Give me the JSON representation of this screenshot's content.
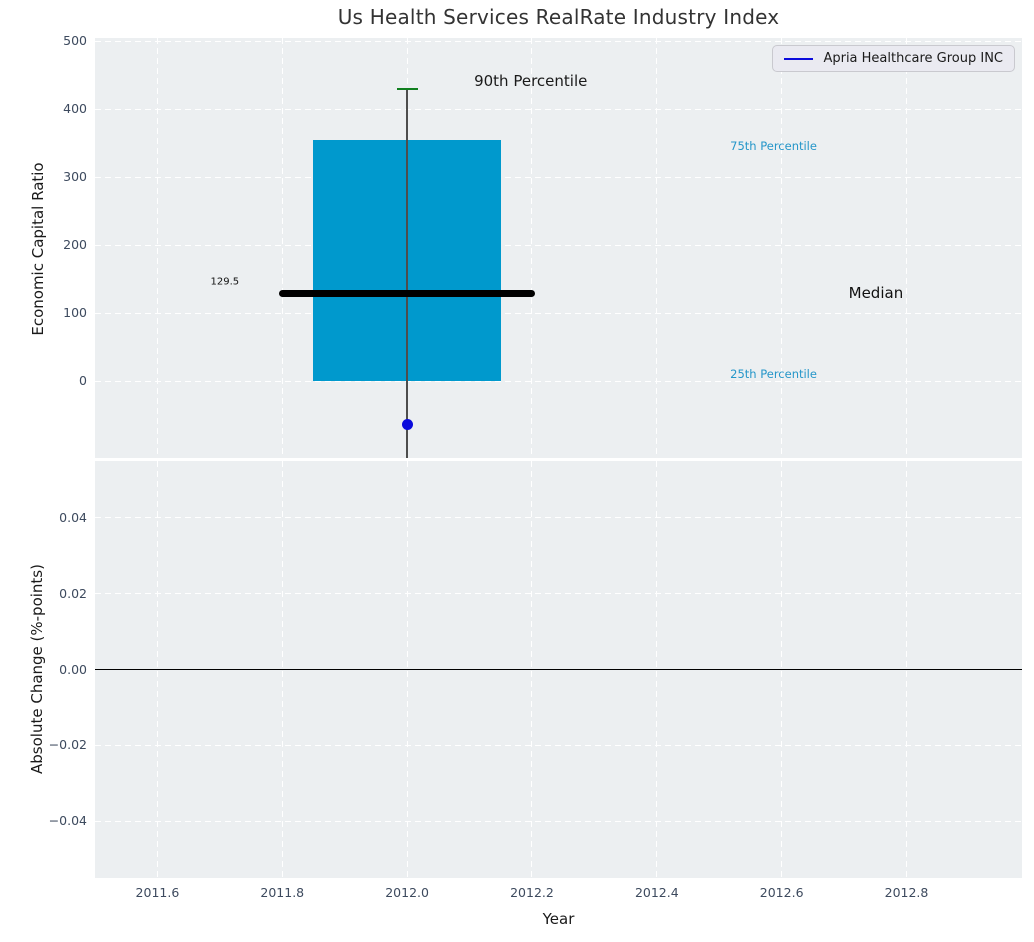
{
  "title": "Us Health Services RealRate Industry Index",
  "legend": {
    "label": "Apria Healthcare Group INC",
    "line_color": "#0b0bdc"
  },
  "colors": {
    "axes_background": "#eceff1",
    "grid": "#ffffff",
    "tick_label": "#3d4a5e",
    "box_fill": "#0099cd",
    "cap_green": "#107f1f",
    "median_black": "#000000",
    "company_blue": "#0b0bdc",
    "whisker_gray": "#4d4d4d"
  },
  "chart_data": {
    "type": "boxplot",
    "title": "Us Health Services RealRate Industry Index",
    "xlabel": "Year",
    "xlim": [
      2011.5,
      2012.985
    ],
    "xticks": [
      {
        "v": 2011.6,
        "label": "2011.6"
      },
      {
        "v": 2011.8,
        "label": "2011.8"
      },
      {
        "v": 2012.0,
        "label": "2012.0"
      },
      {
        "v": 2012.2,
        "label": "2012.2"
      },
      {
        "v": 2012.4,
        "label": "2012.4"
      },
      {
        "v": 2012.6,
        "label": "2012.6"
      },
      {
        "v": 2012.8,
        "label": "2012.8"
      }
    ],
    "grid": true,
    "legend_position": "upper right",
    "subplots": [
      {
        "name": "economic-capital-ratio",
        "ylabel": "Economic Capital Ratio",
        "ylim": [
          -113,
          505
        ],
        "yticks": [
          {
            "v": 0,
            "label": "0"
          },
          {
            "v": 100,
            "label": "100"
          },
          {
            "v": 200,
            "label": "200"
          },
          {
            "v": 300,
            "label": "300"
          },
          {
            "v": 400,
            "label": "400"
          },
          {
            "v": 500,
            "label": "500"
          }
        ],
        "box": {
          "x": 2012.0,
          "p90": 430,
          "p75": 355,
          "median": 129.5,
          "p25": 1,
          "box_half_width": 0.15,
          "median_half_width": 0.205,
          "cap_half_width": 0.017,
          "whisker_clipped_below_axis": true
        },
        "company_point": {
          "series": "Apria Healthcare Group INC",
          "x": 2012.0,
          "y": -64
        },
        "annotations": [
          {
            "text": "90th Percentile",
            "x": 2012.198,
            "y": 442,
            "color": "#1a1a1a",
            "size": 15
          },
          {
            "text": "75th Percentile",
            "x": 2012.587,
            "y": 346,
            "color": "#2596c9",
            "size": 11.5
          },
          {
            "text": "Median",
            "x": 2012.751,
            "y": 130,
            "color": "#111111",
            "size": 15
          },
          {
            "text": "25th Percentile",
            "x": 2012.587,
            "y": 11,
            "color": "#2596c9",
            "size": 11.5
          },
          {
            "text": "129.5",
            "x": 2011.708,
            "y": 146,
            "color": "#111111",
            "size": 10
          }
        ]
      },
      {
        "name": "absolute-change",
        "ylabel": "Absolute Change (%-points)",
        "ylim": [
          -0.055,
          0.055
        ],
        "yticks": [
          {
            "v": 0.04,
            "label": "0.04"
          },
          {
            "v": 0.02,
            "label": "0.02"
          },
          {
            "v": 0.0,
            "label": "0.00"
          },
          {
            "v": -0.02,
            "label": "−0.02"
          },
          {
            "v": -0.04,
            "label": "−0.04"
          }
        ],
        "zero_line": 0.0
      }
    ]
  }
}
